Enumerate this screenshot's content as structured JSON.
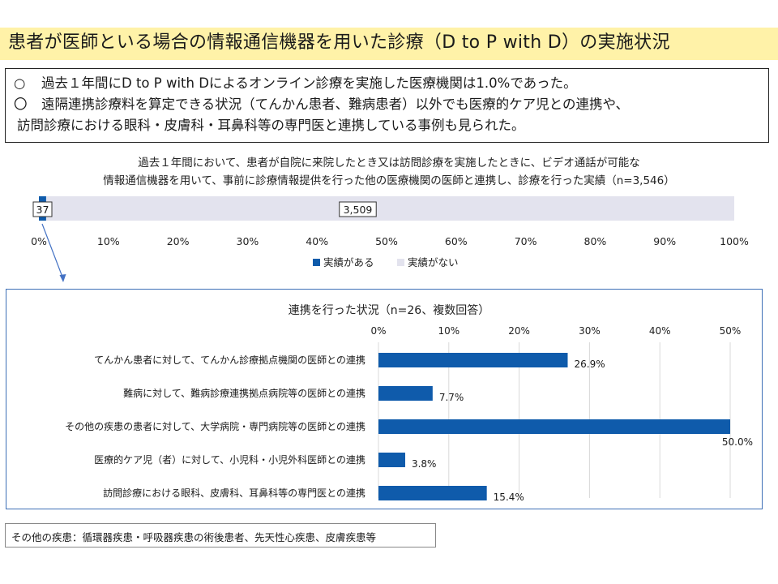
{
  "title": "患者が医師といる場合の情報通信機器を用いた診療（D to P with D）の実施状況",
  "summary": {
    "bullet": "○",
    "bullet2": "〇",
    "line1": "過去１年間にD to P with Dによるオンライン診療を実施した医療機関は1.0%であった。",
    "line2": "遠隔連携診療料を算定できる状況（てんかん患者、難病患者）以外でも医療的ケア児との連携や、",
    "line3": "訪問診療における眼科・皮膚科・耳鼻科等の専門医と連携している事例も見られた。"
  },
  "colors": {
    "primary": "#0f5bab",
    "secondary": "#e3e3ee",
    "title_bg": "#fff2a8"
  },
  "chart_data": [
    {
      "type": "bar",
      "orientation": "horizontal-stacked-percent",
      "title_line1": "過去１年間において、患者が自院に来院したとき又は訪問診療を実施したときに、ビデオ通話が可能な",
      "title_line2": "情報通信機器を用いて、事前に診療情報提供を行った他の医療機関の医師と連携し、診療を行った実績（n=3,546）",
      "series": [
        {
          "name": "実績がある",
          "value": 37,
          "label": "37",
          "color": "#0f5bab"
        },
        {
          "name": "実績がない",
          "value": 3509,
          "label": "3,509",
          "color": "#e3e3ee"
        }
      ],
      "total": 3546,
      "xlim": [
        0,
        100
      ],
      "ticks": [
        "0%",
        "10%",
        "20%",
        "30%",
        "40%",
        "50%",
        "60%",
        "70%",
        "80%",
        "90%",
        "100%"
      ],
      "legend_placement": "bottom",
      "grid": false
    },
    {
      "type": "bar",
      "orientation": "horizontal",
      "title": "連携を行った状況（n=26、複数回答）",
      "categories": [
        "てんかん患者に対して、てんかん診療拠点機関の医師との連携",
        "難病に対して、難病診療連携拠点病院等の医師との連携",
        "その他の疾患の患者に対して、大学病院・専門病院等の医師との連携",
        "医療的ケア児（者）に対して、小児科・小児外科医師との連携",
        "訪問診療における眼科、皮膚科、耳鼻科等の専門医との連携"
      ],
      "values": [
        26.9,
        7.7,
        50.0,
        3.8,
        15.4
      ],
      "value_labels": [
        "26.9%",
        "7.7%",
        "50.0%",
        "3.8%",
        "15.4%"
      ],
      "xlim": [
        0,
        50
      ],
      "ticks": [
        "0%",
        "10%",
        "20%",
        "30%",
        "40%",
        "50%"
      ],
      "grid": true,
      "axis_position": "top"
    }
  ],
  "note": "その他の疾患：循環器疾患・呼吸器疾患の術後患者、先天性心疾患、皮膚疾患等"
}
